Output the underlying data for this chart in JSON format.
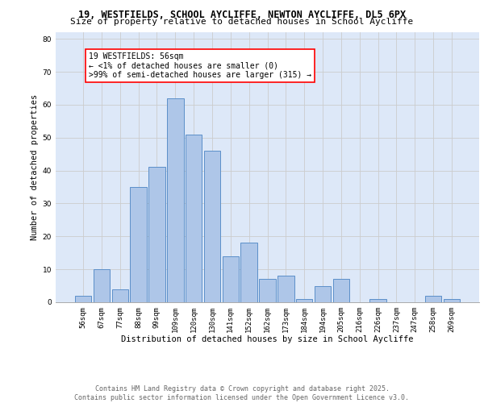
{
  "title1": "19, WESTFIELDS, SCHOOL AYCLIFFE, NEWTON AYCLIFFE, DL5 6PX",
  "title2": "Size of property relative to detached houses in School Aycliffe",
  "xlabel": "Distribution of detached houses by size in School Aycliffe",
  "ylabel": "Number of detached properties",
  "categories": [
    "56sqm",
    "67sqm",
    "77sqm",
    "88sqm",
    "99sqm",
    "109sqm",
    "120sqm",
    "130sqm",
    "141sqm",
    "152sqm",
    "162sqm",
    "173sqm",
    "184sqm",
    "194sqm",
    "205sqm",
    "216sqm",
    "226sqm",
    "237sqm",
    "247sqm",
    "258sqm",
    "269sqm"
  ],
  "values": [
    2,
    10,
    4,
    35,
    41,
    62,
    51,
    46,
    14,
    18,
    7,
    8,
    1,
    5,
    7,
    0,
    1,
    0,
    0,
    2,
    1
  ],
  "bar_color": "#aec6e8",
  "bar_edge_color": "#5b8fc9",
  "annotation_text": "19 WESTFIELDS: 56sqm\n← <1% of detached houses are smaller (0)\n>99% of semi-detached houses are larger (315) →",
  "annotation_box_color": "white",
  "annotation_box_edge_color": "red",
  "ylim": [
    0,
    82
  ],
  "yticks": [
    0,
    10,
    20,
    30,
    40,
    50,
    60,
    70,
    80
  ],
  "grid_color": "#cccccc",
  "background_color": "#dde8f8",
  "footer_text": "Contains HM Land Registry data © Crown copyright and database right 2025.\nContains public sector information licensed under the Open Government Licence v3.0.",
  "title_fontsize": 8.5,
  "subtitle_fontsize": 8,
  "axis_label_fontsize": 7.5,
  "tick_fontsize": 6.5,
  "annotation_fontsize": 7,
  "footer_fontsize": 6
}
